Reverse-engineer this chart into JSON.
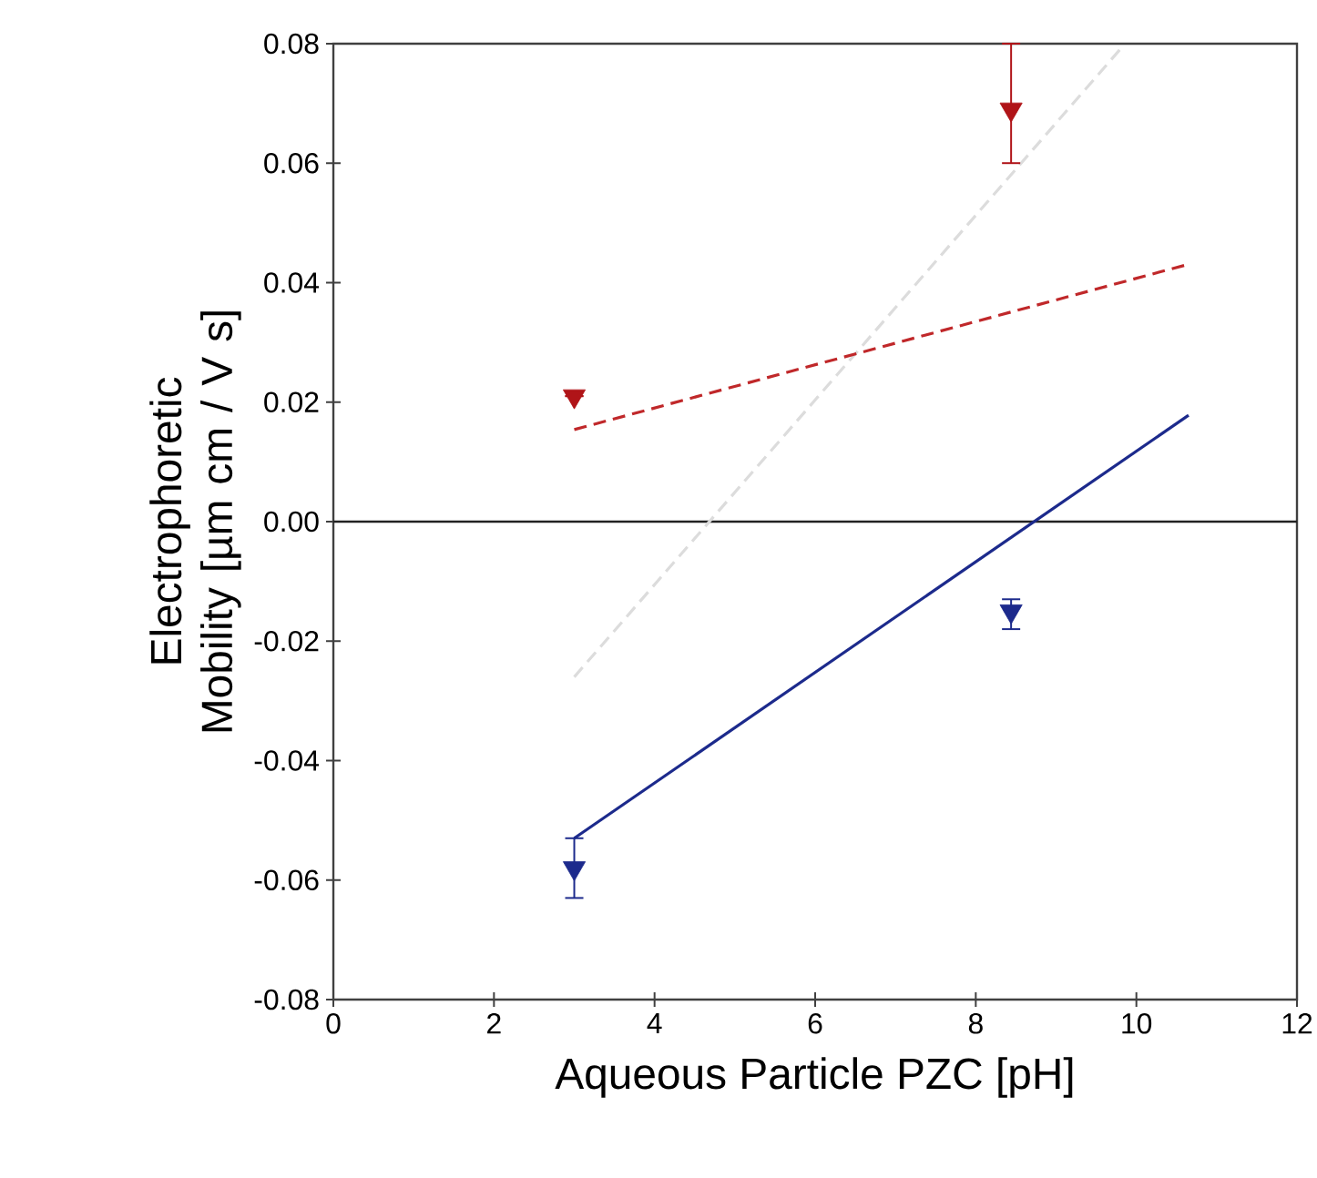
{
  "chart_data": {
    "type": "scatter",
    "xlabel": "Aqueous Particle PZC  [pH]",
    "ylabel": "Electrophoretic Mobility [µm cm / V s]",
    "xlim": [
      0,
      12
    ],
    "xticks": [
      0,
      2,
      4,
      6,
      8,
      10,
      12
    ],
    "ylim": [
      -0.08,
      0.08
    ],
    "yticks": [
      {
        "value": -0.08,
        "label": "-0.08"
      },
      {
        "value": -0.06,
        "label": "-0.06"
      },
      {
        "value": -0.04,
        "label": "-0.04"
      },
      {
        "value": -0.02,
        "label": "-0.02"
      },
      {
        "value": 0,
        "label": "0.00"
      },
      {
        "value": 0.02,
        "label": "0.02"
      },
      {
        "value": 0.04,
        "label": "0.04"
      },
      {
        "value": 0.06,
        "label": "0.06"
      },
      {
        "value": 0.08,
        "label": "0.08"
      }
    ],
    "grid": false,
    "marker": "triangle",
    "ref_lines": [
      {
        "axis": "y",
        "value": 0,
        "color": "#222222"
      }
    ],
    "series": [
      {
        "type": "line",
        "color": "#dcdcdc",
        "line_style": "dashed",
        "marker": "none",
        "x": [
          3.0,
          9.84
        ],
        "values": [
          -0.026,
          0.0797
        ]
      },
      {
        "type": "line",
        "color": "#c0282a",
        "line_style": "dashed",
        "marker": "none",
        "x": [
          3.0,
          10.63
        ],
        "values": [
          0.0154,
          0.043
        ]
      },
      {
        "type": "line",
        "color": "#1c2a8c",
        "line_style": "solid",
        "marker": "none",
        "x": [
          3.0,
          10.65
        ],
        "values": [
          -0.053,
          0.0178
        ]
      },
      {
        "color": "#b01418",
        "x": [
          3.0,
          8.44
        ],
        "values": [
          0.021,
          0.069
        ],
        "errors": [
          null,
          [
            0.06,
            0.08
          ]
        ]
      },
      {
        "color": "#1c2a8c",
        "x": [
          3.0,
          8.44
        ],
        "values": [
          -0.058,
          -0.015
        ],
        "errors": [
          [
            -0.063,
            -0.053
          ],
          [
            -0.018,
            -0.013
          ]
        ]
      }
    ]
  }
}
